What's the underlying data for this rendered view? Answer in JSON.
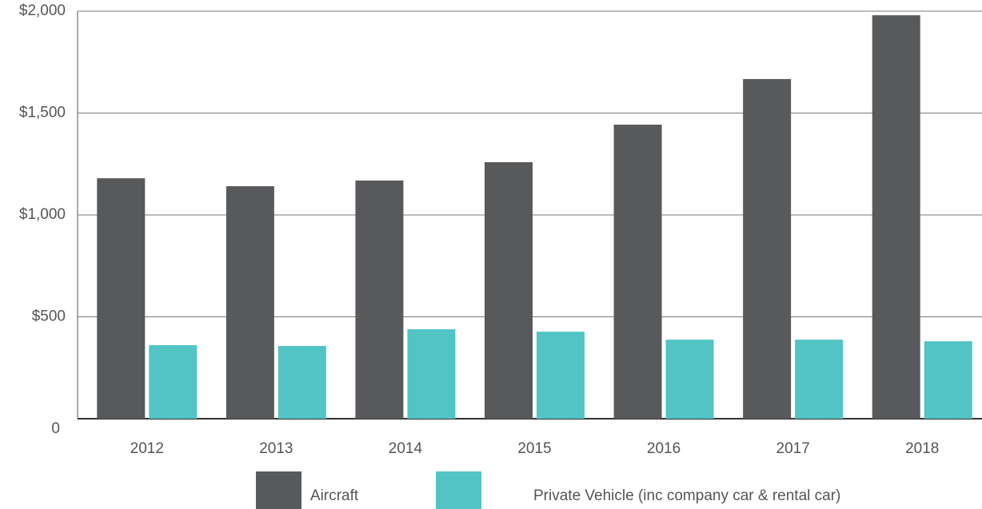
{
  "chart_data": {
    "type": "bar",
    "categories": [
      "2012",
      "2013",
      "2014",
      "2015",
      "2016",
      "2017",
      "2018"
    ],
    "series": [
      {
        "name": "Aircraft",
        "color": "#58595b",
        "values": [
          1180,
          1141,
          1169,
          1259,
          1443,
          1667,
          1980
        ]
      },
      {
        "name": "Private Vehicle (inc company car & rental car)",
        "color": "#52c4c4",
        "values": [
          361,
          357,
          439,
          427,
          388,
          388,
          380
        ]
      }
    ],
    "ylim": [
      0,
      2000
    ],
    "yticks": [
      0,
      {
        "value": 500,
        "label": "$500"
      },
      {
        "value": 1000,
        "label": "$1,000"
      },
      {
        "value": 1500,
        "label": "$1,500"
      },
      {
        "value": 2000,
        "label": "$2,000"
      }
    ],
    "grid": true
  }
}
